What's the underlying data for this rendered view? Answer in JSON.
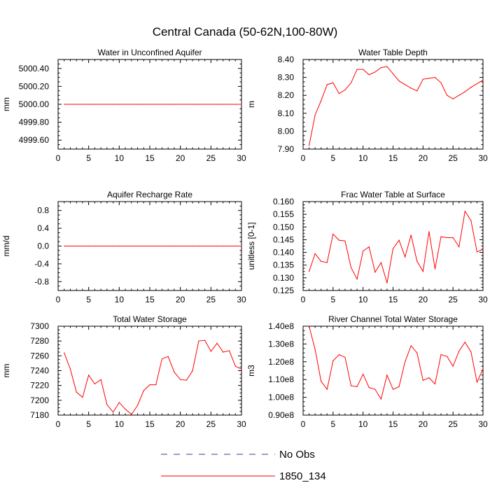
{
  "page_title": "Central Canada (50-62N,100-80W)",
  "colors": {
    "model_line": "#ff0000",
    "obs_line": "#3b3b9a",
    "axis": "#000000"
  },
  "legend": {
    "items": [
      {
        "label": "No Obs",
        "style": "dashed",
        "color": "#3b3b9a"
      },
      {
        "label": "1850_134",
        "style": "solid",
        "color": "#ff0000"
      }
    ]
  },
  "chart_data": [
    {
      "type": "line",
      "title": "Water in Unconfined Aquifer",
      "ylabel": "mm",
      "xlim": [
        0,
        30
      ],
      "ylim": [
        4999.5,
        5000.5
      ],
      "xticks": [
        0,
        5,
        10,
        15,
        20,
        25,
        30
      ],
      "xtick_labels": [
        "0",
        "5",
        "10",
        "15",
        "20",
        "25",
        "30"
      ],
      "yticks": [
        4999.6,
        4999.8,
        5000.0,
        5000.2,
        5000.4
      ],
      "ytick_labels": [
        "4999.60",
        "4999.80",
        "5000.00",
        "5000.20",
        "5000.40"
      ],
      "grid": false,
      "series": [
        {
          "name": "1850_134",
          "x": [
            1,
            2,
            3,
            4,
            5,
            6,
            7,
            8,
            9,
            10,
            11,
            12,
            13,
            14,
            15,
            16,
            17,
            18,
            19,
            20,
            21,
            22,
            23,
            24,
            25,
            26,
            27,
            28,
            29,
            30
          ],
          "values": [
            5000,
            5000,
            5000,
            5000,
            5000,
            5000,
            5000,
            5000,
            5000,
            5000,
            5000,
            5000,
            5000,
            5000,
            5000,
            5000,
            5000,
            5000,
            5000,
            5000,
            5000,
            5000,
            5000,
            5000,
            5000,
            5000,
            5000,
            5000,
            5000,
            5000
          ]
        }
      ]
    },
    {
      "type": "line",
      "title": "Water Table Depth",
      "ylabel": "m",
      "xlim": [
        0,
        30
      ],
      "ylim": [
        7.9,
        8.4
      ],
      "xticks": [
        0,
        5,
        10,
        15,
        20,
        25,
        30
      ],
      "xtick_labels": [
        "0",
        "5",
        "10",
        "15",
        "20",
        "25",
        "30"
      ],
      "yticks": [
        7.9,
        8.0,
        8.1,
        8.2,
        8.3,
        8.4
      ],
      "ytick_labels": [
        "7.90",
        "8.00",
        "8.10",
        "8.20",
        "8.30",
        "8.40"
      ],
      "grid": false,
      "series": [
        {
          "name": "1850_134",
          "x": [
            1,
            2,
            3,
            4,
            5,
            6,
            7,
            8,
            9,
            10,
            11,
            12,
            13,
            14,
            15,
            16,
            17,
            18,
            19,
            20,
            21,
            22,
            23,
            24,
            25,
            26,
            27,
            28,
            29,
            30
          ],
          "values": [
            7.92,
            8.09,
            8.17,
            8.26,
            8.27,
            8.21,
            8.23,
            8.27,
            8.345,
            8.345,
            8.315,
            8.33,
            8.355,
            8.36,
            8.32,
            8.28,
            8.26,
            8.24,
            8.225,
            8.29,
            8.295,
            8.3,
            8.27,
            8.2,
            8.18,
            8.2,
            8.22,
            8.245,
            8.265,
            8.285
          ]
        }
      ]
    },
    {
      "type": "line",
      "title": "Aquifer Recharge Rate",
      "ylabel": "mm/d",
      "xlim": [
        0,
        30
      ],
      "ylim": [
        -1.0,
        1.0
      ],
      "xticks": [
        0,
        5,
        10,
        15,
        20,
        25,
        30
      ],
      "xtick_labels": [
        "0",
        "5",
        "10",
        "15",
        "20",
        "25",
        "30"
      ],
      "yticks": [
        -0.8,
        -0.4,
        0.0,
        0.4,
        0.8
      ],
      "ytick_labels": [
        "-0.8",
        "-0.4",
        "0.0",
        "0.4",
        "0.8"
      ],
      "grid": false,
      "series": [
        {
          "name": "1850_134",
          "x": [
            1,
            2,
            3,
            4,
            5,
            6,
            7,
            8,
            9,
            10,
            11,
            12,
            13,
            14,
            15,
            16,
            17,
            18,
            19,
            20,
            21,
            22,
            23,
            24,
            25,
            26,
            27,
            28,
            29,
            30
          ],
          "values": [
            0,
            0,
            0,
            0,
            0,
            0,
            0,
            0,
            0,
            0,
            0,
            0,
            0,
            0,
            0,
            0,
            0,
            0,
            0,
            0,
            0,
            0,
            0,
            0,
            0,
            0,
            0,
            0,
            0,
            0
          ]
        }
      ]
    },
    {
      "type": "line",
      "title": "Frac Water Table at Surface",
      "ylabel": "unitless [0-1]",
      "xlim": [
        0,
        30
      ],
      "ylim": [
        0.125,
        0.16
      ],
      "xticks": [
        0,
        5,
        10,
        15,
        20,
        25,
        30
      ],
      "xtick_labels": [
        "0",
        "5",
        "10",
        "15",
        "20",
        "25",
        "30"
      ],
      "yticks": [
        0.125,
        0.13,
        0.135,
        0.14,
        0.145,
        0.15,
        0.155,
        0.16
      ],
      "ytick_labels": [
        "0.125",
        "0.130",
        "0.135",
        "0.140",
        "0.145",
        "0.150",
        "0.155",
        "0.160"
      ],
      "grid": false,
      "series": [
        {
          "name": "1850_134",
          "x": [
            1,
            2,
            3,
            4,
            5,
            6,
            7,
            8,
            9,
            10,
            11,
            12,
            13,
            14,
            15,
            16,
            17,
            18,
            19,
            20,
            21,
            22,
            23,
            24,
            25,
            26,
            27,
            28,
            29,
            30
          ],
          "values": [
            0.1325,
            0.1395,
            0.1365,
            0.136,
            0.1472,
            0.1448,
            0.1445,
            0.134,
            0.1295,
            0.1405,
            0.1422,
            0.1322,
            0.136,
            0.128,
            0.1415,
            0.1448,
            0.1382,
            0.1468,
            0.1365,
            0.1325,
            0.1482,
            0.1335,
            0.1462,
            0.1458,
            0.1458,
            0.1422,
            0.1562,
            0.1525,
            0.1402,
            0.1412
          ]
        }
      ]
    },
    {
      "type": "line",
      "title": "Total Water Storage",
      "ylabel": "mm",
      "xlim": [
        0,
        30
      ],
      "ylim": [
        7180,
        7300
      ],
      "xticks": [
        0,
        5,
        10,
        15,
        20,
        25,
        30
      ],
      "xtick_labels": [
        "0",
        "5",
        "10",
        "15",
        "20",
        "25",
        "30"
      ],
      "yticks": [
        7180,
        7200,
        7220,
        7240,
        7260,
        7280,
        7300
      ],
      "ytick_labels": [
        "7180",
        "7200",
        "7220",
        "7240",
        "7260",
        "7280",
        "7300"
      ],
      "grid": false,
      "series": [
        {
          "name": "1850_134",
          "x": [
            1,
            2,
            3,
            4,
            5,
            6,
            7,
            8,
            9,
            10,
            11,
            12,
            13,
            14,
            15,
            16,
            17,
            18,
            19,
            20,
            21,
            22,
            23,
            24,
            25,
            26,
            27,
            28,
            29,
            30
          ],
          "values": [
            7264,
            7242,
            7211,
            7204,
            7234,
            7222,
            7228,
            7194,
            7184,
            7197,
            7188,
            7181,
            7193,
            7213,
            7221,
            7221,
            7256,
            7259,
            7238,
            7228,
            7227,
            7240,
            7280,
            7281,
            7266,
            7277,
            7265,
            7267,
            7246,
            7242
          ]
        }
      ]
    },
    {
      "type": "line",
      "title": "River Channel Total Water Storage",
      "ylabel": "m3",
      "xlim": [
        0,
        30
      ],
      "ylim": [
        90000000.0,
        140000000.0
      ],
      "xticks": [
        0,
        5,
        10,
        15,
        20,
        25,
        30
      ],
      "xtick_labels": [
        "0",
        "5",
        "10",
        "15",
        "20",
        "25",
        "30"
      ],
      "yticks": [
        90000000.0,
        100000000.0,
        110000000.0,
        120000000.0,
        130000000.0,
        140000000.0
      ],
      "ytick_labels": [
        "0.90e8",
        "1.00e8",
        "1.10e8",
        "1.20e8",
        "1.30e8",
        "1.40e8"
      ],
      "grid": false,
      "series": [
        {
          "name": "1850_134",
          "x": [
            1,
            2,
            3,
            4,
            5,
            6,
            7,
            8,
            9,
            10,
            11,
            12,
            13,
            14,
            15,
            16,
            17,
            18,
            19,
            20,
            21,
            22,
            23,
            24,
            25,
            26,
            27,
            28,
            29,
            30
          ],
          "values": [
            140000000.0,
            127000000.0,
            109000000.0,
            104500000.0,
            120500000.0,
            124000000.0,
            122500000.0,
            106500000.0,
            106000000.0,
            113000000.0,
            105500000.0,
            104500000.0,
            99000000.0,
            112500000.0,
            104500000.0,
            106000000.0,
            120000000.0,
            129000000.0,
            125000000.0,
            109500000.0,
            111000000.0,
            107500000.0,
            124000000.0,
            123000000.0,
            117500000.0,
            126000000.0,
            131000000.0,
            125500000.0,
            108500000.0,
            116000000.0
          ]
        }
      ]
    }
  ]
}
